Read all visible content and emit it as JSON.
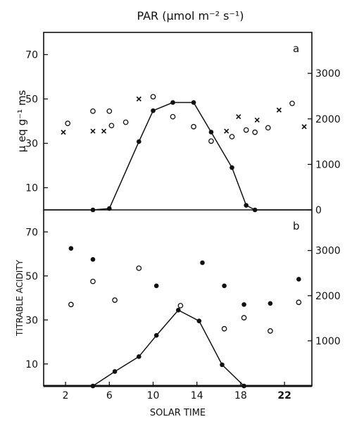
{
  "chart_data": [
    {
      "panel_label": "a",
      "type": "scatter",
      "top_axis_label": "PAR (μmol m⁻² s⁻¹)",
      "ylabel_left": "μ eq g⁻¹ ms",
      "ylim_left": [
        0,
        80
      ],
      "ylim_right": [
        0,
        3900
      ],
      "xlim": [
        0,
        24.5
      ],
      "left_ticks": [
        "10",
        "30",
        "50",
        "70"
      ],
      "right_ticks": [
        "0",
        "1000",
        "2000",
        "3000"
      ],
      "series": [
        {
          "marker": "x",
          "points": [
            [
              1.8,
              35
            ],
            [
              4.5,
              35.5
            ],
            [
              5.5,
              35.5
            ],
            [
              8.7,
              50
            ],
            [
              16.7,
              35.5
            ],
            [
              17.8,
              42
            ],
            [
              19.5,
              40.5
            ],
            [
              21.5,
              45
            ],
            [
              23.8,
              37.5
            ]
          ]
        },
        {
          "marker": "open-circle",
          "points": [
            [
              2.2,
              39
            ],
            [
              4.5,
              44.5
            ],
            [
              6,
              44.5
            ],
            [
              6.2,
              38
            ],
            [
              7.5,
              39.5
            ],
            [
              10,
              51
            ],
            [
              11.8,
              42
            ],
            [
              13.7,
              37.5
            ],
            [
              15.3,
              31
            ],
            [
              17.2,
              33
            ],
            [
              18.5,
              36
            ],
            [
              19.3,
              35
            ],
            [
              20.5,
              37
            ],
            [
              22.7,
              48
            ]
          ]
        },
        {
          "marker": "line-filled",
          "axis": "right",
          "points": [
            [
              4.5,
              0
            ],
            [
              6,
              30
            ],
            [
              8.7,
              1500
            ],
            [
              10,
              2180
            ],
            [
              11.8,
              2360
            ],
            [
              13.7,
              2360
            ],
            [
              15.3,
              1710
            ],
            [
              17.2,
              930
            ],
            [
              18.5,
              100
            ],
            [
              19.3,
              0
            ]
          ]
        }
      ]
    },
    {
      "panel_label": "b",
      "type": "scatter",
      "xlabel": "SOLAR TIME",
      "ylabel_left": "TITRABLE ACIDITY",
      "ylim_left": [
        0,
        80
      ],
      "ylim_right": [
        0,
        3900
      ],
      "xlim": [
        0,
        24.5
      ],
      "x_ticks": [
        "2",
        "6",
        "10",
        "14",
        "18",
        "22"
      ],
      "left_ticks": [
        "10",
        "30",
        "50",
        "70"
      ],
      "right_ticks": [
        "1000",
        "2000",
        "3000"
      ],
      "series": [
        {
          "marker": "filled-circle",
          "points": [
            [
              2.5,
              62.5
            ],
            [
              4.5,
              57.5
            ],
            [
              10.3,
              45.5
            ],
            [
              14.5,
              56
            ],
            [
              16.5,
              45.5
            ],
            [
              18.3,
              37
            ],
            [
              20.7,
              37.5
            ],
            [
              23.3,
              48.5
            ]
          ]
        },
        {
          "marker": "open-circle",
          "points": [
            [
              2.5,
              37
            ],
            [
              4.5,
              47.5
            ],
            [
              6.5,
              39
            ],
            [
              8.7,
              53.5
            ],
            [
              12.5,
              36.5
            ],
            [
              16.5,
              26
            ],
            [
              18.3,
              31
            ],
            [
              20.7,
              25
            ],
            [
              23.3,
              38
            ]
          ]
        },
        {
          "marker": "line-filled",
          "axis": "right",
          "points": [
            [
              4.5,
              0
            ],
            [
              6.5,
              320
            ],
            [
              8.7,
              650
            ],
            [
              10.3,
              1120
            ],
            [
              12.3,
              1680
            ],
            [
              14.2,
              1440
            ],
            [
              16.3,
              470
            ],
            [
              18.3,
              0
            ]
          ]
        }
      ]
    }
  ]
}
